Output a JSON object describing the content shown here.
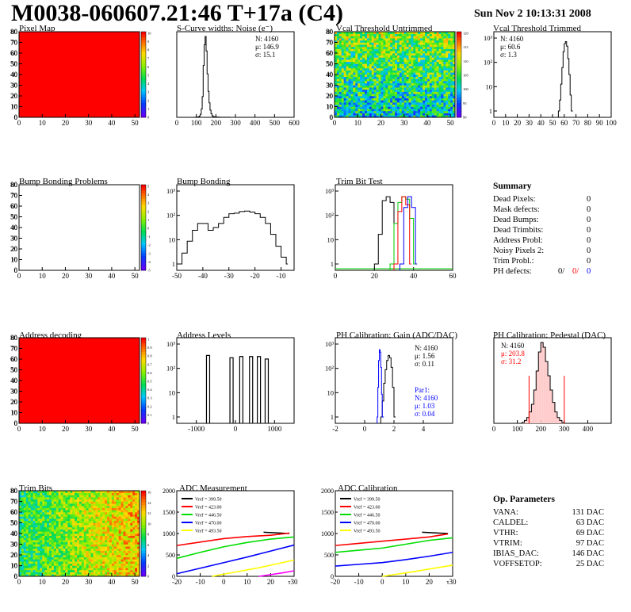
{
  "header": {
    "title": "M0038-060607.21:46 T+17a (C4)",
    "date": "Sun Nov  2 10:13:31 2008"
  },
  "panels": {
    "pixel_map": {
      "title": "Pixel Map",
      "colors": [
        "#ff0000"
      ],
      "palette_ticks": [
        "10",
        "9",
        "8",
        "7",
        "6",
        "5",
        "4",
        "3",
        "2",
        "1",
        "0"
      ]
    },
    "scurve": {
      "title": "S-Curve widths: Noise (e⁻)",
      "stats": {
        "n": "N: 4160",
        "mu": "μ:  146.9",
        "sigma": "σ:  15.1"
      }
    },
    "vcal_untrimmed": {
      "title": "Vcal Threshold Untrimmed",
      "palette_ticks": [
        "120",
        "115",
        "110",
        "105",
        "100",
        "95",
        "90"
      ]
    },
    "vcal_trimmed": {
      "title": "Vcal Threshold Trimmed",
      "stats": {
        "n": "N: 4160",
        "mu": "μ:  60.6",
        "sigma": "σ:   1.3"
      }
    },
    "bump_problems": {
      "title": "Bump Bonding Problems",
      "palette_ticks": [
        "5",
        "4",
        "3",
        "2",
        "1",
        "0",
        "-1",
        "-2",
        "-3",
        "-4",
        "-5"
      ]
    },
    "bump_bonding": {
      "title": "Bump Bonding"
    },
    "trim_bit_test": {
      "title": "Trim Bit Test"
    },
    "address_decoding": {
      "title": "Address decoding",
      "palette_ticks": [
        "1",
        "0.9",
        "0.8",
        "0.7",
        "0.6",
        "0.5",
        "0.4",
        "0.3",
        "0.2",
        "0.1",
        "0"
      ]
    },
    "address_levels": {
      "title": "Address Levels"
    },
    "ph_gain": {
      "title": "PH Calibration: Gain (ADC/DAC)",
      "stats": {
        "n": "N: 4160",
        "mu": "μ:  1.56",
        "sigma": "σ:  0.11"
      },
      "stats2": {
        "par": "Par1:",
        "n": "N: 4160",
        "mu": "μ:  1.03",
        "sigma": "σ:  0.04"
      }
    },
    "ph_pedestal": {
      "title": "PH Calibration: Pedestal (DAC)",
      "stats": {
        "n": "N: 4160",
        "mu": "μ:  203.8",
        "sigma": "σ:  31.2"
      }
    },
    "trim_bits": {
      "title": "Trim Bits",
      "palette_ticks": [
        "16",
        "14",
        "12",
        "10",
        "8",
        "6",
        "4",
        "2",
        "0"
      ]
    },
    "adc_measurement": {
      "title": "ADC Measurement"
    },
    "adc_calibration": {
      "title": "ADC Calibration"
    }
  },
  "legend": [
    {
      "label": "Vref = 399.50",
      "color": "#000000"
    },
    {
      "label": "Vref = 423.00",
      "color": "#ff0000"
    },
    {
      "label": "Vref = 446.50",
      "color": "#00dd00"
    },
    {
      "label": "Vref = 470.00",
      "color": "#0000ff"
    },
    {
      "label": "Vref = 493.50",
      "color": "#ffff00"
    }
  ],
  "summary": {
    "title": "Summary",
    "rows": [
      {
        "label": "Dead Pixels:",
        "value": "0"
      },
      {
        "label": "Mask defects:",
        "value": "0"
      },
      {
        "label": "Dead Bumps:",
        "value": "0"
      },
      {
        "label": "Dead Trimbits:",
        "value": "0"
      },
      {
        "label": "Address Probl:",
        "value": "0"
      },
      {
        "label": "Noisy Pixels 2:",
        "value": "0"
      },
      {
        "label": "Trim Probl.:",
        "value": "0"
      }
    ],
    "ph_label": "PH defects:",
    "ph_values": [
      "0/",
      "0/",
      "0"
    ]
  },
  "op_params": {
    "title": "Op. Parameters",
    "rows": [
      {
        "label": "VANA:",
        "value": "131 DAC"
      },
      {
        "label": "CALDEL:",
        "value": "63 DAC"
      },
      {
        "label": "VTHR:",
        "value": "69 DAC"
      },
      {
        "label": "VTRIM:",
        "value": "97 DAC"
      },
      {
        "label": "IBIAS_DAC:",
        "value": "146 DAC"
      },
      {
        "label": "VOFFSETOP:",
        "value": "25 DAC"
      }
    ]
  },
  "chart_data": [
    {
      "id": "pixel_map",
      "type": "heatmap",
      "title": "Pixel Map",
      "x_ticks": [
        "0",
        "10",
        "20",
        "30",
        "40",
        "50"
      ],
      "y_ticks": [
        "0",
        "10",
        "20",
        "30",
        "40",
        "50",
        "60",
        "70",
        "80"
      ],
      "xlim": [
        0,
        52
      ],
      "ylim": [
        0,
        80
      ],
      "z_range": [
        0,
        10
      ],
      "uniform_value": 10
    },
    {
      "id": "scurve",
      "type": "histogram",
      "title": "S-Curve widths: Noise (e⁻)",
      "x_ticks": [
        "0",
        "100",
        "200",
        "300",
        "400",
        "500",
        "600"
      ],
      "y_ticks": [],
      "xlim": [
        0,
        600
      ],
      "x": [
        80,
        90,
        100,
        110,
        115,
        120,
        125,
        130,
        135,
        140,
        145,
        150,
        155,
        160,
        165,
        170,
        175,
        180,
        185,
        190,
        200,
        210,
        220,
        230,
        250,
        270,
        300
      ],
      "y": [
        0,
        1,
        3,
        6,
        12,
        30,
        80,
        200,
        500,
        700,
        780,
        640,
        420,
        250,
        140,
        70,
        35,
        15,
        8,
        5,
        3,
        2,
        1,
        1,
        0.5,
        0.3,
        0
      ]
    },
    {
      "id": "vcal_untrimmed",
      "type": "heatmap",
      "title": "Vcal Threshold Untrimmed",
      "x_ticks": [
        "0",
        "10",
        "20",
        "30",
        "40",
        "50"
      ],
      "y_ticks": [
        "0",
        "10",
        "20",
        "30",
        "40",
        "50",
        "60",
        "70",
        "80"
      ],
      "xlim": [
        0,
        52
      ],
      "ylim": [
        0,
        80
      ],
      "z_range": [
        88,
        122
      ]
    },
    {
      "id": "vcal_trimmed",
      "type": "histogram",
      "title": "Vcal Threshold Trimmed",
      "log_y": true,
      "x_ticks": [
        "0",
        "10",
        "20",
        "30",
        "40",
        "50",
        "60",
        "70",
        "80",
        "90",
        "100"
      ],
      "y_ticks": [
        "1",
        "10",
        "10²",
        "10³"
      ],
      "xlim": [
        0,
        100
      ],
      "x": [
        55,
        56,
        57,
        58,
        59,
        60,
        61,
        62,
        63,
        64,
        65,
        66
      ],
      "y": [
        1,
        3,
        15,
        80,
        400,
        900,
        1100,
        700,
        200,
        40,
        5,
        1
      ]
    },
    {
      "id": "bump_problems",
      "type": "heatmap",
      "title": "Bump Bonding Problems",
      "x_ticks": [
        "0",
        "10",
        "20",
        "30",
        "40",
        "50"
      ],
      "y_ticks": [
        "0",
        "10",
        "20",
        "30",
        "40",
        "50",
        "60",
        "70",
        "80"
      ],
      "xlim": [
        0,
        52
      ],
      "ylim": [
        0,
        80
      ],
      "z_range": [
        -5,
        5
      ],
      "empty": true
    },
    {
      "id": "bump_bonding",
      "type": "histogram",
      "title": "Bump Bonding",
      "log_y": true,
      "x_ticks": [
        "-50",
        "-40",
        "-30",
        "-20",
        "-10"
      ],
      "y_ticks": [
        "1",
        "10",
        "10²",
        "10³"
      ],
      "xlim": [
        -50,
        -5
      ],
      "x": [
        -50,
        -48,
        -46,
        -44,
        -42,
        -40,
        -38,
        -36,
        -34,
        -32,
        -30,
        -28,
        -26,
        -24,
        -22,
        -20,
        -18,
        -16,
        -14,
        -12,
        -10,
        -8
      ],
      "y": [
        1,
        3,
        10,
        30,
        60,
        60,
        30,
        40,
        60,
        110,
        160,
        170,
        200,
        210,
        190,
        160,
        110,
        60,
        20,
        6,
        2,
        1
      ]
    },
    {
      "id": "trim_bit_test",
      "type": "histogram",
      "title": "Trim Bit Test",
      "log_y": true,
      "x_ticks": [
        "0",
        "20",
        "40",
        "60"
      ],
      "y_ticks": [
        "1",
        "10",
        "10²",
        "10³"
      ],
      "xlim": [
        0,
        60
      ],
      "series": [
        {
          "color": "#000000",
          "x": [
            20,
            22,
            24,
            26,
            28,
            30
          ],
          "y": [
            1,
            20,
            600,
            900,
            500,
            1
          ]
        },
        {
          "color": "#00cc00",
          "x": [
            28,
            30,
            32,
            34,
            36,
            38,
            40
          ],
          "y": [
            1,
            60,
            500,
            900,
            700,
            100,
            1
          ]
        },
        {
          "color": "#ff0000",
          "x": [
            30,
            32,
            34,
            36,
            38
          ],
          "y": [
            1,
            200,
            900,
            400,
            1
          ]
        },
        {
          "color": "#0000ff",
          "x": [
            33,
            35,
            37,
            39,
            41
          ],
          "y": [
            1,
            300,
            900,
            300,
            1
          ]
        }
      ]
    },
    {
      "id": "address_decoding",
      "type": "heatmap",
      "title": "Address decoding",
      "x_ticks": [
        "0",
        "10",
        "20",
        "30",
        "40",
        "50"
      ],
      "y_ticks": [
        "0",
        "10",
        "20",
        "30",
        "40",
        "50",
        "60",
        "70",
        "80"
      ],
      "xlim": [
        0,
        52
      ],
      "ylim": [
        0,
        80
      ],
      "z_range": [
        0,
        1
      ],
      "uniform_value": 1
    },
    {
      "id": "address_levels",
      "type": "histogram",
      "title": "Address Levels",
      "log_y": true,
      "x_ticks": [
        "-1000",
        "0",
        "1000"
      ],
      "y_ticks": [
        "1",
        "10",
        "10²",
        "10³"
      ],
      "xlim": [
        -1500,
        1500
      ],
      "x": [
        -700,
        -100,
        150,
        400,
        600,
        800
      ],
      "y": [
        500,
        400,
        450,
        450,
        450,
        350
      ]
    },
    {
      "id": "ph_gain",
      "type": "histogram",
      "title": "PH Calibration: Gain (ADC/DAC)",
      "log_y": true,
      "x_ticks": [
        "-2",
        "0",
        "2",
        "4"
      ],
      "y_ticks": [
        "1",
        "10",
        "10²",
        "10³"
      ],
      "xlim": [
        -2,
        6
      ],
      "series": [
        {
          "color": "#000000",
          "x": [
            1.1,
            1.2,
            1.3,
            1.4,
            1.5,
            1.6,
            1.7,
            1.8,
            1.9,
            2.0
          ],
          "y": [
            1,
            5,
            30,
            120,
            300,
            500,
            400,
            150,
            20,
            1
          ]
        },
        {
          "color": "#0000ff",
          "x": [
            0.85,
            0.9,
            0.95,
            1.0,
            1.05,
            1.1,
            1.15,
            1.2
          ],
          "y": [
            1,
            20,
            300,
            900,
            700,
            150,
            10,
            1
          ]
        }
      ]
    },
    {
      "id": "ph_pedestal",
      "type": "histogram",
      "title": "PH Calibration: Pedestal (DAC)",
      "x_ticks": [
        "0",
        "100",
        "200",
        "300",
        "400"
      ],
      "y_ticks": [],
      "xlim": [
        0,
        500
      ],
      "x": [
        120,
        130,
        140,
        150,
        160,
        170,
        180,
        190,
        200,
        210,
        220,
        230,
        240,
        250,
        260,
        270,
        280,
        290,
        300
      ],
      "y": [
        1,
        3,
        6,
        12,
        20,
        35,
        55,
        75,
        85,
        80,
        65,
        50,
        35,
        22,
        12,
        6,
        3,
        1,
        0
      ]
    },
    {
      "id": "trim_bits",
      "type": "heatmap",
      "title": "Trim Bits",
      "x_ticks": [
        "0",
        "10",
        "20",
        "30",
        "40",
        "50"
      ],
      "y_ticks": [
        "0",
        "10",
        "20",
        "30",
        "40",
        "50",
        "60",
        "70",
        "80"
      ],
      "xlim": [
        0,
        52
      ],
      "ylim": [
        0,
        80
      ],
      "z_range": [
        0,
        16
      ]
    },
    {
      "id": "adc_measurement",
      "type": "line",
      "title": "ADC Measurement",
      "x_ticks": [
        "-20",
        "-10",
        "0",
        "10",
        "20",
        "30"
      ],
      "y_ticks": [
        "0",
        "500",
        "1000",
        "1500",
        "2000"
      ],
      "xlim": [
        -20,
        30
      ],
      "ylim": [
        0,
        2000
      ],
      "series": [
        {
          "name": "Vref = 399.50",
          "color": "#000000",
          "x": [
            17,
            28
          ],
          "y": [
            1030,
            1000
          ]
        },
        {
          "name": "Vref = 423.00",
          "color": "#ff0000",
          "x": [
            -20,
            -10,
            0,
            10,
            20,
            28
          ],
          "y": [
            720,
            800,
            880,
            930,
            960,
            1010
          ]
        },
        {
          "name": "Vref = 446.50",
          "color": "#00dd00",
          "x": [
            -20,
            -10,
            0,
            10,
            20,
            30
          ],
          "y": [
            420,
            560,
            690,
            790,
            870,
            920
          ]
        },
        {
          "name": "Vref = 470.00",
          "color": "#0000ff",
          "x": [
            -20,
            -10,
            0,
            10,
            20,
            30
          ],
          "y": [
            60,
            190,
            320,
            450,
            590,
            730
          ]
        },
        {
          "name": "Vref = 493.50",
          "color": "#ffff00",
          "x": [
            -5,
            5,
            15,
            25,
            30
          ],
          "y": [
            0,
            100,
            200,
            320,
            380
          ]
        },
        {
          "name": "",
          "color": "#ff00ff",
          "x": [
            15,
            25,
            30
          ],
          "y": [
            0,
            80,
            130
          ]
        }
      ]
    },
    {
      "id": "adc_calibration",
      "type": "line",
      "title": "ADC Calibration",
      "x_ticks": [
        "-20",
        "-10",
        "0",
        "10",
        "20",
        "30"
      ],
      "y_ticks": [
        "0",
        "500",
        "1000",
        "1500",
        "2000"
      ],
      "xlim": [
        -20,
        30
      ],
      "ylim": [
        0,
        2000
      ],
      "series": [
        {
          "name": "Vref = 399.50",
          "color": "#000000",
          "x": [
            17,
            28
          ],
          "y": [
            1030,
            1000
          ]
        },
        {
          "name": "Vref = 423.00",
          "color": "#ff0000",
          "x": [
            -20,
            -10,
            0,
            10,
            20,
            28
          ],
          "y": [
            720,
            770,
            820,
            870,
            920,
            990
          ]
        },
        {
          "name": "Vref = 446.50",
          "color": "#00dd00",
          "x": [
            -20,
            -10,
            0,
            10,
            20,
            30
          ],
          "y": [
            560,
            610,
            660,
            750,
            840,
            900
          ]
        },
        {
          "name": "Vref = 470.00",
          "color": "#0000ff",
          "x": [
            -20,
            -10,
            0,
            10,
            20,
            30
          ],
          "y": [
            240,
            280,
            320,
            390,
            470,
            560
          ]
        },
        {
          "name": "Vref = 493.50",
          "color": "#ffff00",
          "x": [
            0,
            10,
            20,
            30
          ],
          "y": [
            0,
            80,
            170,
            260
          ]
        }
      ]
    }
  ]
}
